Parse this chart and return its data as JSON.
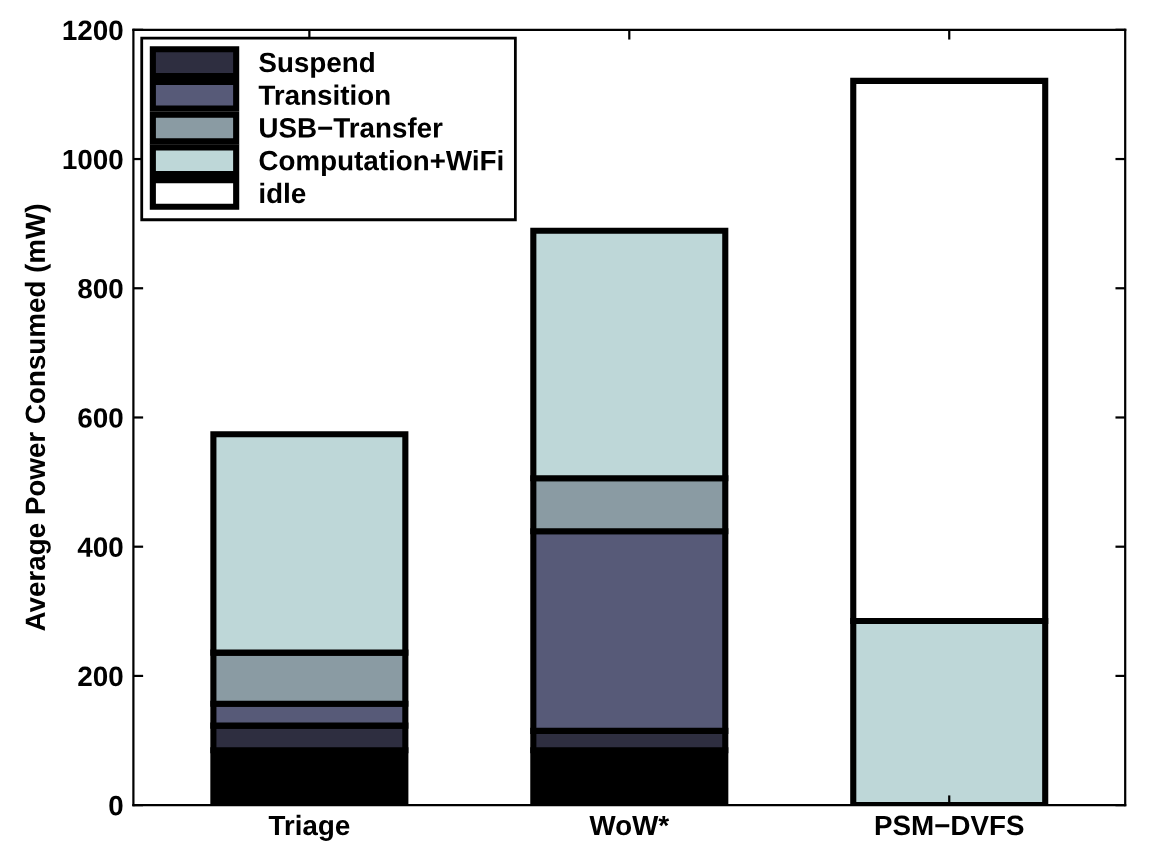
{
  "chart_data": {
    "type": "bar",
    "stacked": true,
    "ylabel": "Average Power Consumed (mW)",
    "categories": [
      "Triage",
      "WoW*",
      "PSM−DVFS"
    ],
    "series": [
      {
        "color": "#000000",
        "values": [
          85,
          85,
          0
        ]
      },
      {
        "name": "Suspend",
        "color": "#2e2e40",
        "values": [
          38,
          30,
          0
        ]
      },
      {
        "name": "Transition",
        "color": "#575a78",
        "values": [
          34,
          309,
          0
        ]
      },
      {
        "name": "USB−Transfer",
        "color": "#8a9ba3",
        "values": [
          79,
          82,
          0
        ]
      },
      {
        "name": "Computation+WiFi",
        "color": "#bed7d8",
        "values": [
          338,
          383,
          285
        ]
      },
      {
        "name": "idle",
        "color": "#ffffff",
        "values": [
          0,
          0,
          836
        ]
      }
    ],
    "ylim": [
      0,
      1200
    ],
    "yticks": [
      0,
      200,
      400,
      600,
      800,
      1000,
      1200
    ],
    "grid": false,
    "legend": "top left"
  }
}
